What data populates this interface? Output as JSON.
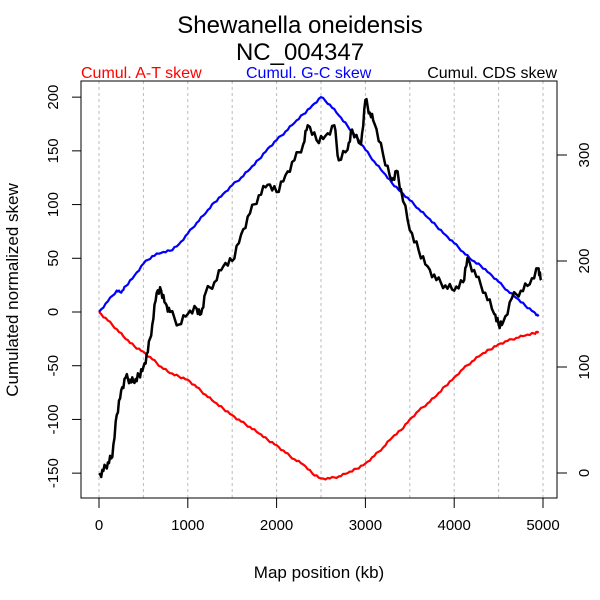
{
  "chart_data": {
    "type": "line",
    "title": "Shewanella oneidensis",
    "subtitle": "NC_004347",
    "xlabel": "Map position (kb)",
    "ylabel": "Cumulated normalized skew",
    "xlim": [
      0,
      5000
    ],
    "ylim": [
      -150,
      200
    ],
    "ylim_right": [
      0,
      350
    ],
    "x_ticks": [
      0,
      1000,
      2000,
      3000,
      4000,
      5000
    ],
    "x_tick_labels": [
      "0",
      "1000",
      "2000",
      "3000",
      "4000",
      "5000"
    ],
    "y_ticks": [
      -150,
      -100,
      -50,
      0,
      50,
      100,
      150,
      200
    ],
    "y_tick_labels": [
      "-150",
      "-100",
      "-50",
      "0",
      "50",
      "100",
      "150",
      "200"
    ],
    "y_right_ticks": [
      0,
      100,
      200,
      300
    ],
    "y_right_tick_labels": [
      "0",
      "100",
      "200",
      "300"
    ],
    "grid": "vertical dotted every 500 kb",
    "legend_placement": "top, above plot",
    "series": [
      {
        "name": "Cumul. A-T skew",
        "color": "#ff0000",
        "axis": "left",
        "x": [
          0,
          100,
          200,
          300,
          400,
          500,
          600,
          700,
          800,
          900,
          1000,
          1100,
          1200,
          1300,
          1400,
          1500,
          1600,
          1700,
          1800,
          1900,
          2000,
          2100,
          2200,
          2300,
          2400,
          2500,
          2600,
          2700,
          2800,
          2900,
          3000,
          3100,
          3200,
          3300,
          3400,
          3500,
          3600,
          3700,
          3800,
          3900,
          4000,
          4100,
          4200,
          4300,
          4400,
          4500,
          4600,
          4700,
          4800,
          4900,
          4950
        ],
        "y": [
          0,
          -8,
          -16,
          -25,
          -32,
          -37,
          -44,
          -51,
          -57,
          -60,
          -63,
          -70,
          -77,
          -84,
          -90,
          -96,
          -102,
          -107,
          -113,
          -119,
          -124,
          -131,
          -137,
          -142,
          -150,
          -155,
          -155,
          -153,
          -150,
          -146,
          -141,
          -134,
          -126,
          -117,
          -110,
          -100,
          -92,
          -85,
          -78,
          -69,
          -61,
          -53,
          -46,
          -40,
          -35,
          -30,
          -27,
          -24,
          -22,
          -20,
          -18
        ]
      },
      {
        "name": "Cumul. G-C skew",
        "color": "#0000ff",
        "axis": "left",
        "x": [
          0,
          100,
          200,
          250,
          300,
          400,
          500,
          600,
          700,
          800,
          900,
          1000,
          1100,
          1200,
          1300,
          1400,
          1500,
          1600,
          1700,
          1800,
          1900,
          2000,
          2100,
          2200,
          2300,
          2400,
          2500,
          2600,
          2700,
          2800,
          2900,
          3000,
          3100,
          3200,
          3300,
          3400,
          3500,
          3600,
          3700,
          3800,
          3900,
          4000,
          4100,
          4200,
          4300,
          4400,
          4500,
          4600,
          4700,
          4800,
          4900,
          4950
        ],
        "y": [
          0,
          10,
          20,
          18,
          24,
          34,
          45,
          52,
          55,
          57,
          63,
          73,
          83,
          92,
          102,
          110,
          118,
          125,
          133,
          142,
          152,
          160,
          168,
          176,
          184,
          192,
          200,
          193,
          183,
          173,
          163,
          151,
          140,
          130,
          120,
          112,
          104,
          96,
          88,
          80,
          72,
          64,
          56,
          48,
          43,
          36,
          28,
          20,
          13,
          6,
          0,
          -4
        ]
      },
      {
        "name": "Cumul. CDS skew",
        "color": "#000000",
        "axis": "right",
        "x": [
          0,
          50,
          100,
          150,
          200,
          250,
          300,
          350,
          400,
          450,
          500,
          550,
          600,
          650,
          700,
          750,
          800,
          900,
          1000,
          1100,
          1150,
          1200,
          1300,
          1400,
          1500,
          1600,
          1700,
          1800,
          1900,
          2000,
          2100,
          2200,
          2300,
          2350,
          2450,
          2550,
          2650,
          2700,
          2800,
          2850,
          2950,
          3000,
          3050,
          3100,
          3200,
          3300,
          3350,
          3400,
          3500,
          3600,
          3700,
          3800,
          3900,
          4000,
          4100,
          4150,
          4250,
          4350,
          4450,
          4500,
          4550,
          4650,
          4750,
          4850,
          4950,
          4980
        ],
        "y": [
          -2,
          2,
          10,
          15,
          55,
          78,
          90,
          88,
          85,
          92,
          100,
          114,
          140,
          170,
          172,
          160,
          152,
          140,
          150,
          155,
          150,
          170,
          180,
          195,
          200,
          225,
          245,
          262,
          272,
          265,
          281,
          295,
          310,
          328,
          314,
          318,
          328,
          295,
          305,
          324,
          310,
          352,
          340,
          330,
          300,
          276,
          285,
          268,
          229,
          210,
          195,
          182,
          177,
          172,
          180,
          203,
          185,
          170,
          150,
          140,
          142,
          165,
          172,
          178,
          193,
          182
        ]
      }
    ]
  }
}
